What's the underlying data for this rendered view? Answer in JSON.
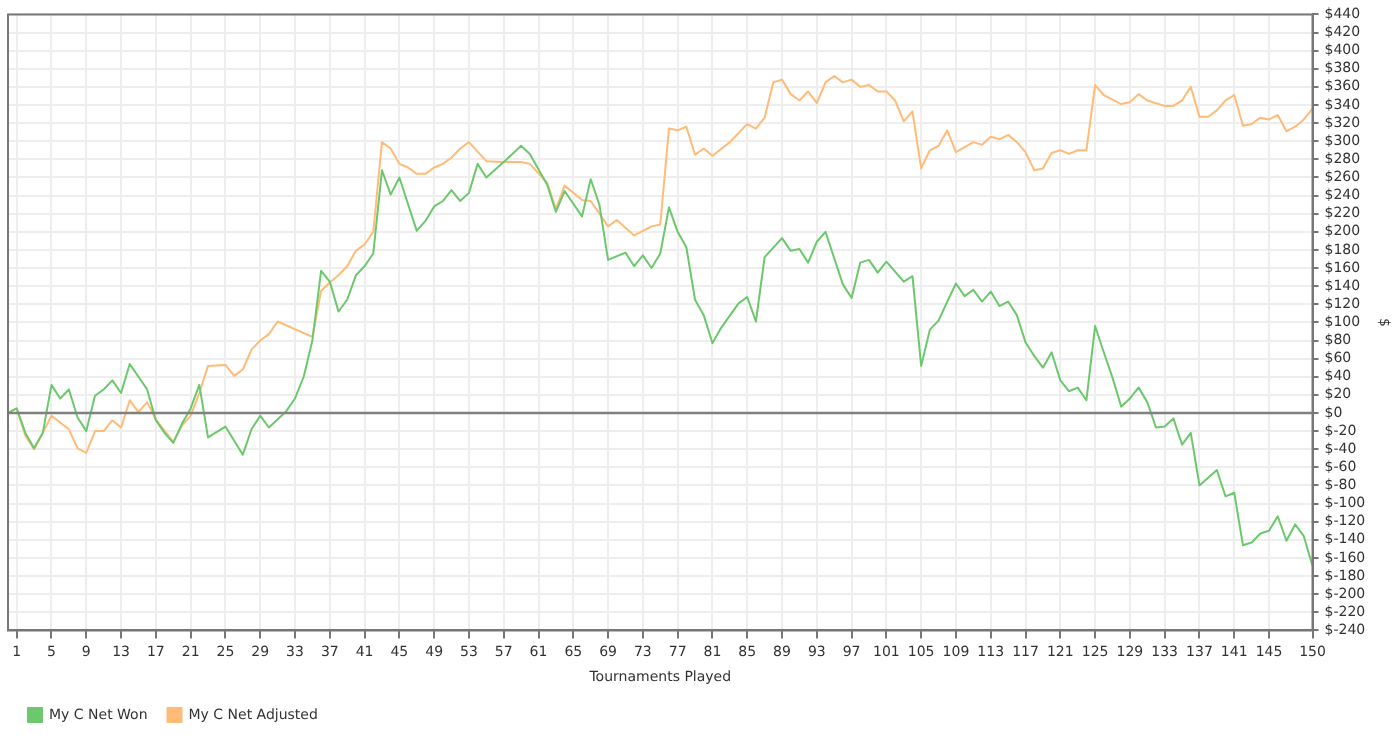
{
  "chart_data": {
    "type": "line",
    "xlabel": "Tournaments Played",
    "ylabel": "$",
    "xlim": [
      0,
      150
    ],
    "xticks": [
      1,
      5,
      9,
      13,
      17,
      21,
      25,
      29,
      33,
      37,
      41,
      45,
      49,
      53,
      57,
      61,
      65,
      69,
      73,
      77,
      81,
      85,
      89,
      93,
      97,
      101,
      105,
      109,
      113,
      117,
      121,
      125,
      129,
      133,
      137,
      141,
      145,
      150
    ],
    "ylim": [
      -240,
      440
    ],
    "yticks": [
      {
        "value": -240,
        "label": "$-240"
      },
      {
        "value": -220,
        "label": "$-220"
      },
      {
        "value": -200,
        "label": "$-200"
      },
      {
        "value": -180,
        "label": "$-180"
      },
      {
        "value": -160,
        "label": "$-160"
      },
      {
        "value": -140,
        "label": "$-140"
      },
      {
        "value": -120,
        "label": "$-120"
      },
      {
        "value": -100,
        "label": "$-100"
      },
      {
        "value": -80,
        "label": "$-80"
      },
      {
        "value": -60,
        "label": "$-60"
      },
      {
        "value": -40,
        "label": "$-40"
      },
      {
        "value": -20,
        "label": "$-20"
      },
      {
        "value": 0,
        "label": "$0"
      },
      {
        "value": 20,
        "label": "$20"
      },
      {
        "value": 40,
        "label": "$40"
      },
      {
        "value": 60,
        "label": "$60"
      },
      {
        "value": 80,
        "label": "$80"
      },
      {
        "value": 100,
        "label": "$100"
      },
      {
        "value": 120,
        "label": "$120"
      },
      {
        "value": 140,
        "label": "$140"
      },
      {
        "value": 160,
        "label": "$160"
      },
      {
        "value": 180,
        "label": "$180"
      },
      {
        "value": 200,
        "label": "$200"
      },
      {
        "value": 220,
        "label": "$220"
      },
      {
        "value": 240,
        "label": "$240"
      },
      {
        "value": 260,
        "label": "$260"
      },
      {
        "value": 280,
        "label": "$280"
      },
      {
        "value": 300,
        "label": "$300"
      },
      {
        "value": 320,
        "label": "$320"
      },
      {
        "value": 340,
        "label": "$340"
      },
      {
        "value": 360,
        "label": "$360"
      },
      {
        "value": 380,
        "label": "$380"
      },
      {
        "value": 400,
        "label": "$400"
      },
      {
        "value": 420,
        "label": "$420"
      },
      {
        "value": 440,
        "label": "$440"
      }
    ],
    "grid": true,
    "legend": "bottom left",
    "marker": "none",
    "line_style": "solid",
    "ref_lines": [
      {
        "axis": "y",
        "value": 0,
        "color": "#808080"
      }
    ],
    "series": [
      {
        "name": "My C Net Won",
        "color": "#6cc86c",
        "x": [
          0,
          1,
          2,
          3,
          4,
          5,
          6,
          7,
          8,
          9,
          10,
          11,
          12,
          13,
          14,
          15,
          16,
          17,
          18,
          19,
          20,
          21,
          22,
          23,
          25,
          27,
          28,
          29,
          30,
          32,
          33,
          34,
          35,
          36,
          37,
          38,
          39,
          40,
          41,
          42,
          43,
          44,
          45,
          47,
          48,
          49,
          50,
          51,
          52,
          53,
          54,
          55,
          57,
          59,
          60,
          62,
          63,
          64,
          66,
          67,
          68,
          69,
          71,
          72,
          73,
          74,
          75,
          76,
          77,
          78,
          79,
          80,
          81,
          82,
          84,
          85,
          86,
          87,
          89,
          90,
          91,
          92,
          93,
          94,
          96,
          97,
          98,
          99,
          100,
          101,
          103,
          104,
          105,
          106,
          107,
          108,
          109,
          110,
          111,
          112,
          113,
          114,
          115,
          116,
          117,
          118,
          119,
          120,
          121,
          122,
          123,
          124,
          125,
          126,
          127,
          128,
          129,
          130,
          131,
          132,
          133,
          134,
          135,
          136,
          137,
          139,
          140,
          141,
          142,
          143,
          144,
          145,
          146,
          147,
          148,
          149,
          150
        ],
        "values": [
          0,
          5,
          -22,
          -39,
          -22,
          31,
          16,
          26,
          -5,
          -20,
          19,
          26,
          36,
          22,
          54,
          40,
          26,
          -8,
          -22,
          -33,
          -12,
          5,
          31,
          -27,
          -15,
          -46,
          -18,
          -3,
          -16,
          2,
          16,
          40,
          80,
          157,
          145,
          112,
          125,
          152,
          162,
          176,
          268,
          241,
          260,
          201,
          212,
          228,
          234,
          246,
          234,
          243,
          275,
          260,
          277,
          295,
          286,
          252,
          222,
          245,
          217,
          258,
          230,
          169,
          177,
          162,
          174,
          160,
          176,
          227,
          200,
          183,
          125,
          108,
          77,
          94,
          121,
          128,
          101,
          172,
          193,
          179,
          181,
          166,
          189,
          200,
          142,
          127,
          166,
          169,
          155,
          167,
          145,
          151,
          52,
          92,
          102,
          123,
          143,
          129,
          136,
          123,
          134,
          118,
          123,
          108,
          78,
          63,
          50,
          67,
          36,
          24,
          28,
          14,
          96,
          67,
          39,
          7,
          16,
          28,
          12,
          -16,
          -15,
          -6,
          -35,
          -22,
          -80,
          -63,
          -92,
          -88,
          -146,
          -143,
          -133,
          -130,
          -114,
          -141,
          -123,
          -136,
          -169
        ]
      },
      {
        "name": "My C Net Adjusted",
        "color": "#ffbb77",
        "x": [
          0,
          1,
          2,
          3,
          5,
          7,
          8,
          9,
          10,
          11,
          12,
          13,
          14,
          15,
          16,
          17,
          19,
          20,
          21,
          22,
          23,
          25,
          26,
          27,
          28,
          29,
          30,
          31,
          35,
          36,
          37,
          38,
          39,
          40,
          41,
          42,
          43,
          44,
          45,
          46,
          47,
          48,
          49,
          50,
          51,
          52,
          53,
          55,
          57,
          59,
          60,
          62,
          63,
          64,
          66,
          67,
          69,
          70,
          72,
          74,
          75,
          76,
          77,
          78,
          79,
          80,
          81,
          83,
          85,
          86,
          87,
          88,
          89,
          90,
          91,
          92,
          93,
          94,
          95,
          96,
          97,
          98,
          99,
          100,
          101,
          102,
          103,
          104,
          105,
          106,
          107,
          108,
          109,
          111,
          112,
          113,
          114,
          115,
          116,
          117,
          118,
          119,
          120,
          121,
          122,
          123,
          124,
          125,
          126,
          128,
          129,
          130,
          131,
          133,
          134,
          135,
          136,
          137,
          138,
          139,
          140,
          141,
          142,
          143,
          144,
          145,
          146,
          147,
          148,
          149,
          150
        ],
        "values": [
          0,
          5,
          -25,
          -40,
          -3,
          -18,
          -39,
          -44,
          -20,
          -20,
          -8,
          -16,
          14,
          1,
          12,
          -7,
          -32,
          -14,
          -3,
          22,
          52,
          53,
          41,
          48,
          70,
          80,
          87,
          101,
          84,
          135,
          144,
          152,
          162,
          179,
          186,
          200,
          299,
          292,
          275,
          271,
          264,
          264,
          271,
          275,
          282,
          292,
          299,
          278,
          277,
          277,
          275,
          254,
          225,
          251,
          235,
          234,
          206,
          213,
          196,
          206,
          208,
          314,
          312,
          316,
          285,
          292,
          284,
          299,
          319,
          314,
          326,
          365,
          368,
          352,
          345,
          355,
          342,
          365,
          372,
          365,
          368,
          360,
          362,
          355,
          355,
          345,
          322,
          333,
          270,
          290,
          295,
          312,
          288,
          299,
          296,
          305,
          302,
          307,
          299,
          288,
          268,
          270,
          287,
          290,
          286,
          290,
          290,
          362,
          351,
          341,
          343,
          352,
          345,
          339,
          339,
          345,
          360,
          327,
          327,
          334,
          345,
          351,
          317,
          319,
          326,
          324,
          329,
          311,
          316,
          324,
          336
        ]
      }
    ]
  }
}
